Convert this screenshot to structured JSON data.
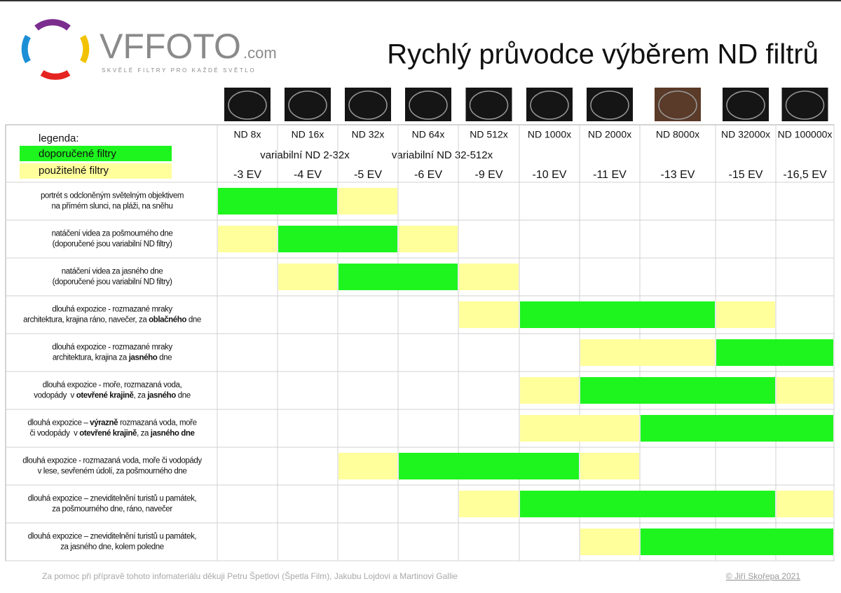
{
  "header": {
    "brand": "VFFOTO",
    "brand_suffix": ".com",
    "tagline": "SKVĚLÉ FILTRY PRO KAŽDÉ SVĚTLO",
    "title": "Rychlý průvodce výběrem ND filtrů"
  },
  "legend": {
    "title": "legenda:",
    "recommended": "doporučené filtry",
    "usable": "použitelné filtry",
    "recommended_color": "#1ef51e",
    "usable_color": "#ffff9c"
  },
  "filters": [
    {
      "name": "ND 8x",
      "ev": "-3 EV"
    },
    {
      "name": "ND 16x",
      "ev": "-4 EV"
    },
    {
      "name": "ND 32x",
      "ev": "-5 EV"
    },
    {
      "name": "ND 64x",
      "ev": "-6 EV"
    },
    {
      "name": "ND 512x",
      "ev": "-9 EV"
    },
    {
      "name": "ND 1000x",
      "ev": "-10 EV"
    },
    {
      "name": "ND 2000x",
      "ev": "-11 EV"
    },
    {
      "name": "ND 8000x",
      "ev": "-13 EV"
    },
    {
      "name": "ND 32000x",
      "ev": "-15 EV"
    },
    {
      "name": "ND 100000x",
      "ev": "-16,5 EV"
    }
  ],
  "variable_filters": [
    "variabilní ND 2-32x",
    "variabilní ND 32-512x"
  ],
  "rows": [
    {
      "lines": [
        [
          "portrét s odcloněným světelným objektivem"
        ],
        [
          "na přímém slunci, na pláži, na sněhu"
        ]
      ],
      "segments": [
        {
          "from": 0,
          "to": 1,
          "kind": "recommended"
        },
        {
          "from": 2,
          "to": 2,
          "kind": "usable"
        }
      ]
    },
    {
      "lines": [
        [
          "natáčení videa za pošmourného dne"
        ],
        [
          "(doporučené jsou variabilní ND filtry)"
        ]
      ],
      "segments": [
        {
          "from": 0,
          "to": 0,
          "kind": "usable"
        },
        {
          "from": 1,
          "to": 2,
          "kind": "recommended"
        },
        {
          "from": 3,
          "to": 3,
          "kind": "usable"
        }
      ]
    },
    {
      "lines": [
        [
          "natáčení videa za jasného dne"
        ],
        [
          "(doporučené jsou variabilní ND filtry)"
        ]
      ],
      "segments": [
        {
          "from": 1,
          "to": 1,
          "kind": "usable"
        },
        {
          "from": 2,
          "to": 3,
          "kind": "recommended"
        },
        {
          "from": 4,
          "to": 4,
          "kind": "usable"
        }
      ]
    },
    {
      "lines": [
        [
          "dlouhá expozice - rozmazané mraky"
        ],
        [
          "architektura, krajina ráno, navečer, za ",
          {
            "text": "oblačného",
            "bold": true
          },
          " dne"
        ]
      ],
      "segments": [
        {
          "from": 4,
          "to": 4,
          "kind": "usable"
        },
        {
          "from": 5,
          "to": 7,
          "kind": "recommended"
        },
        {
          "from": 8,
          "to": 8,
          "kind": "usable"
        }
      ]
    },
    {
      "lines": [
        [
          "dlouhá expozice - rozmazané mraky"
        ],
        [
          "architektura, krajina za ",
          {
            "text": "jasného",
            "bold": true
          },
          " dne"
        ]
      ],
      "segments": [
        {
          "from": 6,
          "to": 7,
          "kind": "usable"
        },
        {
          "from": 8,
          "to": 9,
          "kind": "recommended"
        }
      ]
    },
    {
      "lines": [
        [
          "dlouhá expozice - moře, rozmazaná voda,"
        ],
        [
          "vodopády  v ",
          {
            "text": "otevřené krajině",
            "bold": true
          },
          ", za ",
          {
            "text": "jasného",
            "bold": true
          },
          " dne"
        ]
      ],
      "segments": [
        {
          "from": 5,
          "to": 5,
          "kind": "usable"
        },
        {
          "from": 6,
          "to": 8,
          "kind": "recommended"
        },
        {
          "from": 9,
          "to": 9,
          "kind": "usable"
        }
      ]
    },
    {
      "lines": [
        [
          "dlouhá expozice – ",
          {
            "text": "výrazně",
            "bold": true
          },
          " rozmazaná voda, moře"
        ],
        [
          "či vodopády  v ",
          {
            "text": "otevřené krajině",
            "bold": true
          },
          ", za ",
          {
            "text": "jasného dne",
            "bold": true
          }
        ]
      ],
      "segments": [
        {
          "from": 5,
          "to": 6,
          "kind": "usable"
        },
        {
          "from": 7,
          "to": 9,
          "kind": "recommended"
        }
      ]
    },
    {
      "lines": [
        [
          "dlouhá expozice - rozmazaná voda, moře či vodopády"
        ],
        [
          "v lese, sevřeném údolí, za pošmourného dne"
        ]
      ],
      "segments": [
        {
          "from": 2,
          "to": 2,
          "kind": "usable"
        },
        {
          "from": 3,
          "to": 5,
          "kind": "recommended"
        },
        {
          "from": 6,
          "to": 6,
          "kind": "usable"
        }
      ]
    },
    {
      "lines": [
        [
          "dlouhá expozice – zneviditelnění turistů u památek,"
        ],
        [
          "za pošmourného dne, ráno, navečer"
        ]
      ],
      "segments": [
        {
          "from": 4,
          "to": 4,
          "kind": "usable"
        },
        {
          "from": 5,
          "to": 8,
          "kind": "recommended"
        },
        {
          "from": 9,
          "to": 9,
          "kind": "usable"
        }
      ]
    },
    {
      "lines": [
        [
          "dlouhá expozice – zneviditelnění turistů u památek,"
        ],
        [
          "za jasného dne, kolem poledne"
        ]
      ],
      "segments": [
        {
          "from": 6,
          "to": 6,
          "kind": "usable"
        },
        {
          "from": 7,
          "to": 9,
          "kind": "recommended"
        }
      ]
    }
  ],
  "footer": {
    "thanks": "Za pomoc při přípravě tohoto infomateriálu děkuji Petru Špetlovi (Špetla Film), Jakubu Lojdovi a Martinovi Gallie",
    "copyright": "© Jiří Skořepa 2021"
  }
}
